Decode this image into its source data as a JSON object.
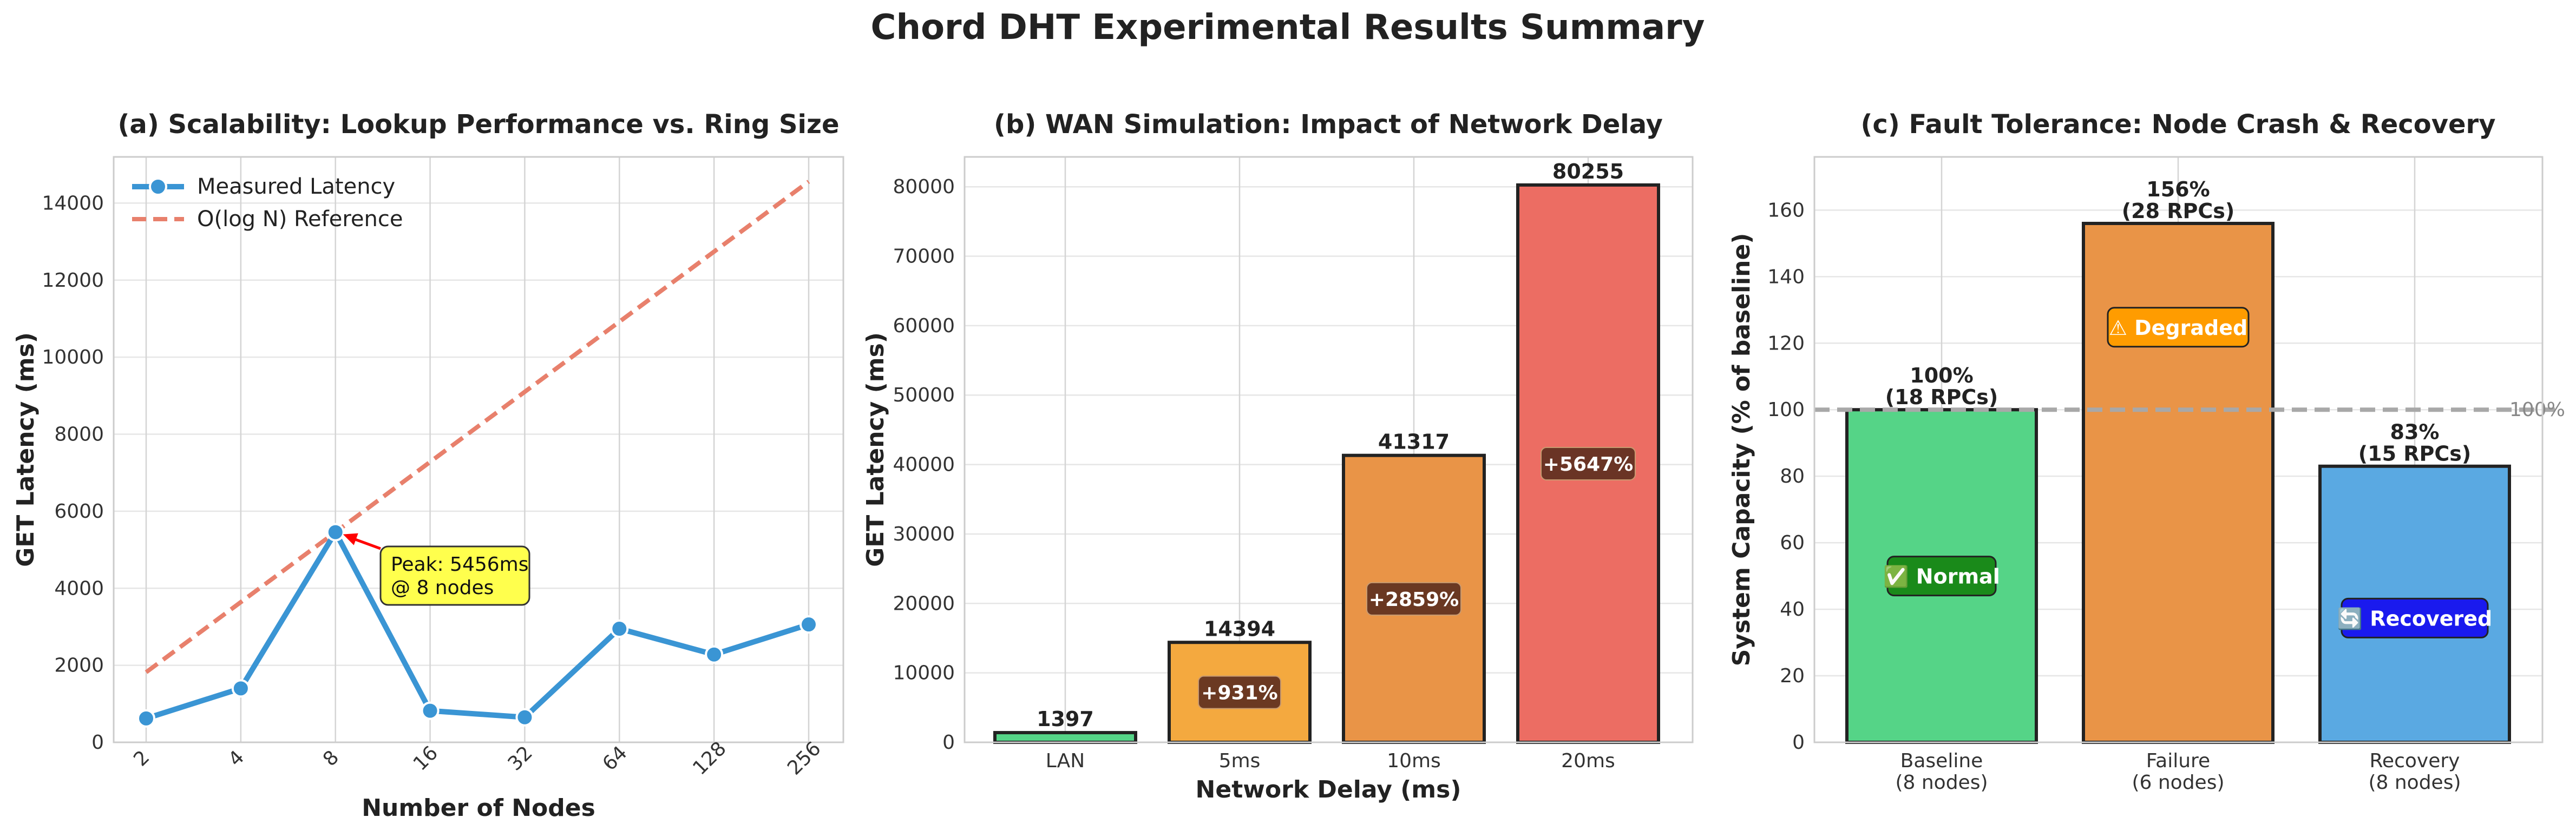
{
  "suptitle": "Chord DHT Experimental Results Summary",
  "colors": {
    "line": "#3a95d4",
    "reference": "#e8806c",
    "annotation_bg": "#ffff4d",
    "arrow": "#ff0000",
    "green": "#55d487",
    "orange": "#e99447",
    "orange_light": "#f4a93f",
    "red": "#ec6d63",
    "blue": "#5aa9e2",
    "grid": "#e6e6e6",
    "spine": "#cccccc"
  },
  "chart_data": [
    {
      "type": "line",
      "title": "(a) Scalability: Lookup Performance vs. Ring Size",
      "xlabel": "Number of Nodes",
      "ylabel": "GET Latency (ms)",
      "categories": [
        "2",
        "4",
        "8",
        "16",
        "32",
        "64",
        "128",
        "256"
      ],
      "series": [
        {
          "name": "Measured Latency",
          "values": [
            620,
            1400,
            5456,
            820,
            650,
            2950,
            2280,
            3060
          ]
        },
        {
          "name": "O(log N) Reference",
          "values": [
            1820,
            3640,
            5456,
            7280,
            9100,
            10920,
            12740,
            14560
          ]
        }
      ],
      "yticks": [
        0,
        2000,
        4000,
        6000,
        8000,
        10000,
        12000,
        14000
      ],
      "ylim": [
        0,
        15200
      ],
      "annotation": {
        "line1": "Peak: 5456ms",
        "line2": "@ 8 nodes",
        "target_index": 2
      },
      "legend": "upper-left",
      "grid": true
    },
    {
      "type": "bar",
      "title": "(b) WAN Simulation: Impact of Network Delay",
      "xlabel": "Network Delay (ms)",
      "ylabel": "GET Latency (ms)",
      "categories": [
        "LAN",
        "5ms",
        "10ms",
        "20ms"
      ],
      "values": [
        1397,
        14394,
        41317,
        80255
      ],
      "value_labels": [
        "1397",
        "14394",
        "41317",
        "80255"
      ],
      "pct_labels": [
        "",
        "+931%",
        "+2859%",
        "+5647%"
      ],
      "yticks": [
        0,
        10000,
        20000,
        30000,
        40000,
        50000,
        60000,
        70000,
        80000
      ],
      "ylim": [
        0,
        84300
      ],
      "grid": true
    },
    {
      "type": "bar",
      "title": "(c) Fault Tolerance: Node Crash & Recovery",
      "ylabel": "System Capacity (% of baseline)",
      "categories": [
        {
          "line1": "Baseline",
          "line2": "(8 nodes)"
        },
        {
          "line1": "Failure",
          "line2": "(6 nodes)"
        },
        {
          "line1": "Recovery",
          "line2": "(8 nodes)"
        }
      ],
      "values": [
        100,
        156,
        83
      ],
      "value_labels": [
        {
          "line1": "100%",
          "line2": "(18 RPCs)"
        },
        {
          "line1": "156%",
          "line2": "(28 RPCs)"
        },
        {
          "line1": "83%",
          "line2": "(15 RPCs)"
        }
      ],
      "status_labels": [
        "✅ Normal",
        "⚠ Degraded",
        "🔄 Recovered"
      ],
      "status_colors": [
        "#1a8a1a",
        "#ff9c00",
        "#1a1aee"
      ],
      "reference_line": {
        "value": 100,
        "label": "100%"
      },
      "yticks": [
        0,
        20,
        40,
        60,
        80,
        100,
        120,
        140,
        160
      ],
      "ylim": [
        0,
        176
      ],
      "grid": true
    }
  ]
}
